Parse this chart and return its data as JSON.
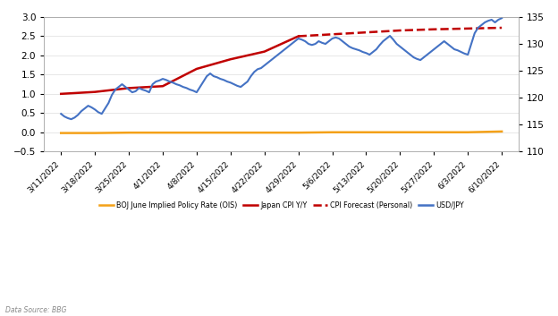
{
  "title": "",
  "xlabel": "",
  "ylabel_left": "",
  "ylabel_right": "",
  "background_color": "#ffffff",
  "left_ylim": [
    -0.5,
    3.0
  ],
  "right_ylim": [
    110,
    135
  ],
  "left_yticks": [
    -0.5,
    0,
    0.5,
    1.0,
    1.5,
    2.0,
    2.5,
    3.0
  ],
  "right_yticks": [
    110,
    115,
    120,
    125,
    130,
    135
  ],
  "x_labels": [
    "3/11/2022",
    "3/18/2022",
    "3/25/2022",
    "4/1/2022",
    "4/8/2022",
    "4/15/2022",
    "4/22/2022",
    "4/29/2022",
    "5/6/2022",
    "5/13/2022",
    "5/20/2022",
    "5/27/2022",
    "6/3/2022",
    "6/10/2022"
  ],
  "ois_data": {
    "x": [
      0,
      1,
      2,
      3,
      4,
      5,
      6,
      7,
      8,
      9,
      10,
      11,
      12,
      13
    ],
    "y": [
      -0.02,
      -0.02,
      -0.01,
      -0.01,
      -0.01,
      -0.01,
      -0.01,
      -0.01,
      0.0,
      0.0,
      0.0,
      0.0,
      0.0,
      0.02
    ],
    "color": "#F4A118",
    "linewidth": 1.8
  },
  "cpi_data": {
    "x": [
      0,
      1,
      2,
      3,
      4,
      5,
      6,
      7
    ],
    "y": [
      1.0,
      1.05,
      1.15,
      1.2,
      1.65,
      1.9,
      2.1,
      2.5
    ],
    "color": "#C00000",
    "linewidth": 1.8
  },
  "cpi_forecast_data": {
    "x": [
      7,
      8,
      9,
      10,
      11,
      12,
      13
    ],
    "y": [
      2.5,
      2.55,
      2.6,
      2.65,
      2.68,
      2.7,
      2.72
    ],
    "color": "#C00000",
    "linewidth": 1.8,
    "linestyle": "--"
  },
  "usdjpy_data": {
    "x": [
      0,
      0.1,
      0.2,
      0.3,
      0.4,
      0.5,
      0.6,
      0.7,
      0.8,
      0.9,
      1.0,
      1.1,
      1.2,
      1.3,
      1.4,
      1.5,
      1.6,
      1.7,
      1.8,
      1.9,
      2.0,
      2.1,
      2.2,
      2.3,
      2.4,
      2.5,
      2.6,
      2.7,
      2.8,
      2.9,
      3.0,
      3.1,
      3.2,
      3.3,
      3.4,
      3.5,
      3.6,
      3.7,
      3.8,
      3.9,
      4.0,
      4.1,
      4.2,
      4.3,
      4.4,
      4.5,
      4.6,
      4.7,
      4.8,
      4.9,
      5.0,
      5.1,
      5.2,
      5.3,
      5.4,
      5.5,
      5.6,
      5.7,
      5.8,
      5.9,
      6.0,
      6.1,
      6.2,
      6.3,
      6.4,
      6.5,
      6.6,
      6.7,
      6.8,
      6.9,
      7.0,
      7.1,
      7.2,
      7.3,
      7.4,
      7.5,
      7.6,
      7.7,
      7.8,
      7.9,
      8.0,
      8.1,
      8.2,
      8.3,
      8.4,
      8.5,
      8.6,
      8.7,
      8.8,
      8.9,
      9.0,
      9.1,
      9.2,
      9.3,
      9.4,
      9.5,
      9.6,
      9.7,
      9.8,
      9.9,
      10.0,
      10.1,
      10.2,
      10.3,
      10.4,
      10.5,
      10.6,
      10.7,
      10.8,
      10.9,
      11.0,
      11.1,
      11.2,
      11.3,
      11.4,
      11.5,
      11.6,
      11.7,
      11.8,
      11.9,
      12.0,
      12.1,
      12.2,
      12.3,
      12.4,
      12.5,
      12.6,
      12.7,
      12.8,
      12.9,
      13.0
    ],
    "y": [
      117.0,
      116.5,
      116.2,
      116.0,
      116.3,
      116.8,
      117.5,
      118.0,
      118.5,
      118.2,
      117.8,
      117.3,
      117.0,
      118.0,
      119.0,
      120.5,
      121.5,
      122.0,
      122.5,
      122.0,
      121.5,
      121.0,
      121.2,
      121.8,
      121.5,
      121.3,
      121.0,
      122.5,
      123.0,
      123.2,
      123.5,
      123.3,
      123.0,
      122.8,
      122.5,
      122.3,
      122.0,
      121.8,
      121.5,
      121.3,
      121.0,
      122.0,
      123.0,
      124.0,
      124.5,
      124.0,
      123.8,
      123.5,
      123.3,
      123.0,
      122.8,
      122.5,
      122.2,
      122.0,
      122.5,
      123.0,
      124.0,
      124.8,
      125.3,
      125.5,
      126.0,
      126.5,
      127.0,
      127.5,
      128.0,
      128.5,
      129.0,
      129.5,
      130.0,
      130.5,
      131.0,
      130.8,
      130.5,
      130.0,
      129.8,
      130.0,
      130.5,
      130.2,
      130.0,
      130.5,
      131.0,
      131.2,
      131.0,
      130.5,
      130.0,
      129.5,
      129.2,
      129.0,
      128.8,
      128.5,
      128.3,
      128.0,
      128.5,
      129.0,
      129.8,
      130.5,
      131.0,
      131.5,
      130.8,
      130.0,
      129.5,
      129.0,
      128.5,
      128.0,
      127.5,
      127.2,
      127.0,
      127.5,
      128.0,
      128.5,
      129.0,
      129.5,
      130.0,
      130.5,
      130.0,
      129.5,
      129.0,
      128.8,
      128.5,
      128.2,
      128.0,
      130.0,
      132.0,
      133.0,
      133.5,
      134.0,
      134.3,
      134.5,
      134.0,
      134.5,
      134.8
    ],
    "color": "#4472C4",
    "linewidth": 1.5
  },
  "data_source": "Data Source: BBG",
  "legend_items": [
    {
      "label": "BOJ June Implied Policy Rate (OIS)",
      "color": "#F4A118",
      "linestyle": "-"
    },
    {
      "label": "Japan CPI Y/Y",
      "color": "#C00000",
      "linestyle": "-"
    },
    {
      "label": "CPI Forecast (Personal)",
      "color": "#C00000",
      "linestyle": "--"
    },
    {
      "label": "USD/JPY",
      "color": "#4472C4",
      "linestyle": "-"
    }
  ]
}
